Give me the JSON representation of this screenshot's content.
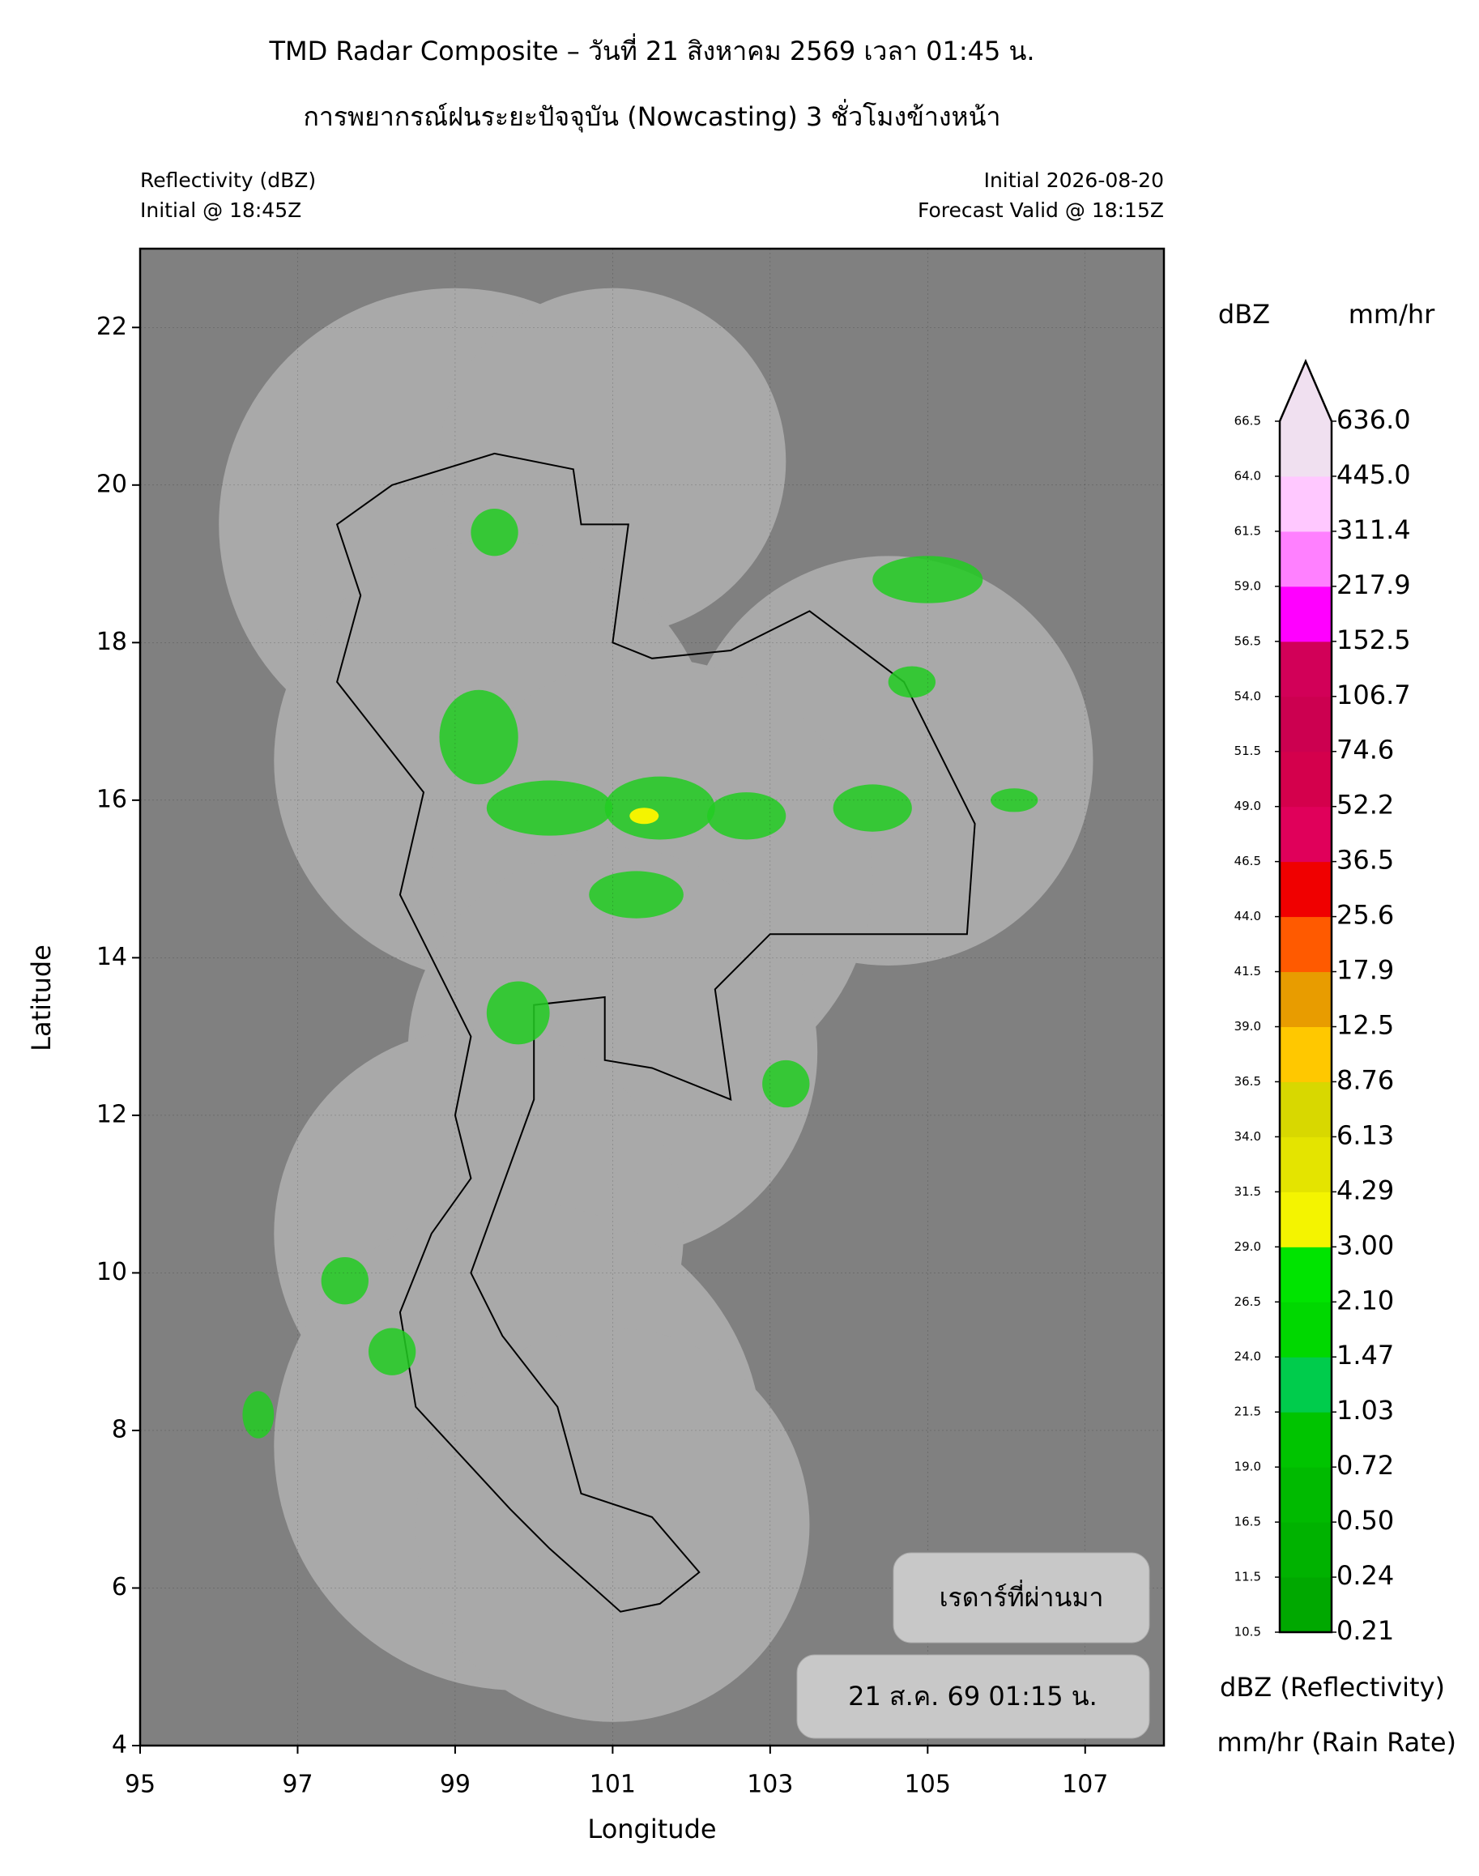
{
  "header": {
    "title_line1": "TMD Radar Composite – วันที่ 21 สิงหาคม 2569 เวลา 01:45 น.",
    "title_line2": "การพยากรณ์ฝนระยะปัจจุบัน (Nowcasting) 3 ชั่วโมงข้างหน้า",
    "left_line1": "Reflectivity (dBZ)",
    "left_line2": "Initial @ 18:45Z",
    "right_line1": "Initial 2026-08-20",
    "right_line2": "Forecast Valid @ 18:15Z"
  },
  "map": {
    "xlabel": "Longitude",
    "ylabel": "Latitude",
    "xlim": [
      95,
      108
    ],
    "ylim": [
      4,
      23
    ],
    "xticks": [
      95,
      97,
      99,
      101,
      103,
      105,
      107
    ],
    "yticks": [
      4,
      6,
      8,
      10,
      12,
      14,
      16,
      18,
      20,
      22
    ]
  },
  "colorbar": {
    "dbz_header": "dBZ",
    "rain_header": "mm/hr",
    "dbz_levels": [
      10.5,
      11.5,
      16.5,
      {
        "value": 19,
        "label": "19.0"
      },
      21.5,
      {
        "value": 24,
        "label": "24.0"
      },
      26.5,
      {
        "value": 29,
        "label": "29.0"
      },
      31.5,
      {
        "value": 34,
        "label": "34.0"
      },
      36.5,
      {
        "value": 39,
        "label": "39.0"
      },
      41.5,
      {
        "value": 44,
        "label": "44.0"
      },
      46.5,
      {
        "value": 49,
        "label": "49.0"
      },
      51.5,
      {
        "value": 54,
        "label": "54.0"
      },
      56.5,
      {
        "value": 59,
        "label": "59.0"
      },
      61.5,
      {
        "value": 64,
        "label": "64.0"
      },
      66.5
    ],
    "rain_levels": [
      0.21,
      0.24,
      {
        "value": 0.5,
        "label": "0.50"
      },
      0.72,
      1.03,
      1.47,
      {
        "value": 2.1,
        "label": "2.10"
      },
      {
        "value": 3,
        "label": "3.00"
      },
      4.29,
      6.13,
      8.76,
      12.5,
      17.9,
      25.6,
      36.5,
      52.2,
      74.6,
      106.7,
      152.5,
      217.9,
      311.4,
      {
        "value": 445,
        "label": "445.0"
      },
      {
        "value": 636,
        "label": "636.0"
      }
    ],
    "colors": [
      "#00a800",
      "#00b200",
      "#00ba00",
      "#00c400",
      "#00cc4c",
      "#00d800",
      "#00e400",
      "#f4f400",
      "#e4e400",
      "#d8d800",
      "#ffc800",
      "#e89c00",
      "#ff5a00",
      "#f00000",
      "#e0005a",
      "#d4004c",
      "#cc0050",
      "#d20058",
      "#ff00ff",
      "#ff80ff",
      "#ffc8ff",
      "#f0e0f0"
    ],
    "extend_color": "#f0e0f0",
    "dbz_caption": "dBZ (Reflectivity)",
    "rain_caption": "mm/hr (Rain Rate)"
  },
  "annotations": {
    "label": "เรดาร์ที่ผ่านมา",
    "time": "21 ส.ค. 69 01:15 น."
  }
}
